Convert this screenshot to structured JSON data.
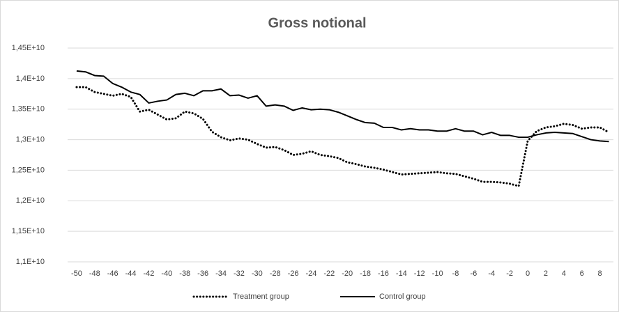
{
  "chart_data": {
    "type": "line",
    "title": "Gross  notional",
    "x": [
      -50,
      -49,
      -48,
      -47,
      -46,
      -45,
      -44,
      -43,
      -42,
      -41,
      -40,
      -39,
      -38,
      -37,
      -36,
      -35,
      -34,
      -33,
      -32,
      -31,
      -30,
      -29,
      -28,
      -27,
      -26,
      -25,
      -24,
      -23,
      -22,
      -21,
      -20,
      -19,
      -18,
      -17,
      -16,
      -15,
      -14,
      -13,
      -12,
      -11,
      -10,
      -9,
      -8,
      -7,
      -6,
      -5,
      -4,
      -3,
      -2,
      -1,
      0,
      1,
      2,
      3,
      4,
      5,
      6,
      7,
      8,
      9
    ],
    "series": [
      {
        "name": "Treatment group",
        "color": "#000000",
        "dash": true,
        "values": [
          13860000000.0,
          13860000000.0,
          13780000000.0,
          13750000000.0,
          13720000000.0,
          13750000000.0,
          13700000000.0,
          13460000000.0,
          13490000000.0,
          13410000000.0,
          13330000000.0,
          13350000000.0,
          13460000000.0,
          13430000000.0,
          13340000000.0,
          13130000000.0,
          13040000000.0,
          12990000000.0,
          13020000000.0,
          13000000000.0,
          12930000000.0,
          12870000000.0,
          12880000000.0,
          12830000000.0,
          12750000000.0,
          12770000000.0,
          12810000000.0,
          12750000000.0,
          12730000000.0,
          12700000000.0,
          12630000000.0,
          12600000000.0,
          12560000000.0,
          12540000000.0,
          12510000000.0,
          12470000000.0,
          12430000000.0,
          12440000000.0,
          12450000000.0,
          12460000000.0,
          12470000000.0,
          12450000000.0,
          12440000000.0,
          12400000000.0,
          12360000000.0,
          12310000000.0,
          12310000000.0,
          12300000000.0,
          12280000000.0,
          12240000000.0,
          12980000000.0,
          13140000000.0,
          13200000000.0,
          13220000000.0,
          13260000000.0,
          13240000000.0,
          13180000000.0,
          13200000000.0,
          13200000000.0,
          13120000000.0
        ]
      },
      {
        "name": "Control group",
        "color": "#000000",
        "dash": false,
        "values": [
          14125000000.0,
          14110000000.0,
          14050000000.0,
          14040000000.0,
          13920000000.0,
          13860000000.0,
          13780000000.0,
          13740000000.0,
          13600000000.0,
          13630000000.0,
          13650000000.0,
          13740000000.0,
          13760000000.0,
          13720000000.0,
          13800000000.0,
          13800000000.0,
          13830000000.0,
          13720000000.0,
          13730000000.0,
          13680000000.0,
          13720000000.0,
          13550000000.0,
          13570000000.0,
          13550000000.0,
          13480000000.0,
          13520000000.0,
          13490000000.0,
          13500000000.0,
          13490000000.0,
          13450000000.0,
          13390000000.0,
          13330000000.0,
          13280000000.0,
          13270000000.0,
          13200000000.0,
          13200000000.0,
          13160000000.0,
          13180000000.0,
          13160000000.0,
          13160000000.0,
          13140000000.0,
          13140000000.0,
          13180000000.0,
          13140000000.0,
          13140000000.0,
          13080000000.0,
          13120000000.0,
          13070000000.0,
          13070000000.0,
          13040000000.0,
          13040000000.0,
          13080000000.0,
          13110000000.0,
          13120000000.0,
          13110000000.0,
          13100000000.0,
          13050000000.0,
          13000000000.0,
          12980000000.0,
          12970000000.0
        ]
      }
    ],
    "xlim": [
      -51,
      9.5
    ],
    "xticks": [
      -50,
      -48,
      -46,
      -44,
      -42,
      -40,
      -38,
      -36,
      -34,
      -32,
      -30,
      -28,
      -26,
      -24,
      -22,
      -20,
      -18,
      -16,
      -14,
      -12,
      -10,
      -8,
      -6,
      -4,
      -2,
      0,
      2,
      4,
      6,
      8
    ],
    "ylim": [
      11000000000.0,
      14500000000.0
    ],
    "yticks": [
      {
        "value": 11000000000.0,
        "label": "1,1E+10"
      },
      {
        "value": 11500000000.0,
        "label": "1,15E+10"
      },
      {
        "value": 12000000000.0,
        "label": "1,2E+10"
      },
      {
        "value": 12500000000.0,
        "label": "1,25E+10"
      },
      {
        "value": 13000000000.0,
        "label": "1,3E+10"
      },
      {
        "value": 13500000000.0,
        "label": "1,35E+10"
      },
      {
        "value": 14000000000.0,
        "label": "1,4E+10"
      },
      {
        "value": 14500000000.0,
        "label": "1,45E+10"
      }
    ],
    "grid": true,
    "legend": "bottom"
  }
}
